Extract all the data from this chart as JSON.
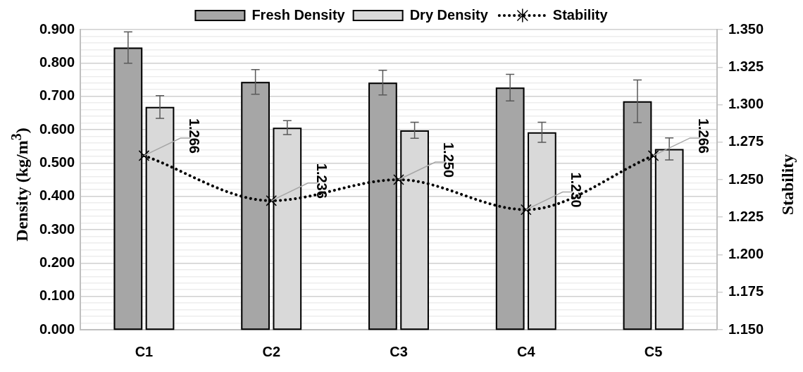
{
  "chart_data": {
    "type": "bar",
    "ylabel": "Density (kg/m$^{3}$)",
    "y2label": "Stability",
    "categories": [
      "C1",
      "C2",
      "C3",
      "C4",
      "C5"
    ],
    "series": [
      {
        "name": "Fresh Density",
        "color": "#a6a6a6",
        "values": [
          0.846,
          0.743,
          0.741,
          0.726,
          0.685
        ],
        "errors": [
          0.047,
          0.037,
          0.037,
          0.04,
          0.064
        ]
      },
      {
        "name": "Dry Density",
        "color": "#d9d9d9",
        "values": [
          0.668,
          0.606,
          0.598,
          0.592,
          0.542
        ],
        "errors": [
          0.034,
          0.021,
          0.024,
          0.03,
          0.033
        ]
      },
      {
        "name": "Stability",
        "type": "line",
        "axis": "y2",
        "color": "#000000",
        "marker": "cross",
        "line_style": "dotted",
        "values": [
          1.266,
          1.236,
          1.25,
          1.23,
          1.266
        ],
        "value_labels": [
          "1.266",
          "1.236",
          "1.250",
          "1.230",
          "1.266"
        ]
      }
    ],
    "ylim": [
      0,
      0.9
    ],
    "yticks": [
      {
        "value": 0,
        "label": "0.000"
      },
      {
        "value": 0.02,
        "label": null
      },
      {
        "value": 0.04,
        "label": null
      },
      {
        "value": 0.06,
        "label": null
      },
      {
        "value": 0.08,
        "label": null
      },
      {
        "value": 0.1,
        "label": "0.100"
      },
      {
        "value": 0.12,
        "label": null
      },
      {
        "value": 0.14,
        "label": null
      },
      {
        "value": 0.16,
        "label": null
      },
      {
        "value": 0.18,
        "label": null
      },
      {
        "value": 0.2,
        "label": "0.200"
      },
      {
        "value": 0.22,
        "label": null
      },
      {
        "value": 0.24,
        "label": null
      },
      {
        "value": 0.26,
        "label": null
      },
      {
        "value": 0.28,
        "label": null
      },
      {
        "value": 0.3,
        "label": "0.300"
      },
      {
        "value": 0.32,
        "label": null
      },
      {
        "value": 0.34,
        "label": null
      },
      {
        "value": 0.36,
        "label": null
      },
      {
        "value": 0.38,
        "label": null
      },
      {
        "value": 0.4,
        "label": "0.400"
      },
      {
        "value": 0.42,
        "label": null
      },
      {
        "value": 0.44,
        "label": null
      },
      {
        "value": 0.46,
        "label": null
      },
      {
        "value": 0.48,
        "label": null
      },
      {
        "value": 0.5,
        "label": "0.500"
      },
      {
        "value": 0.52,
        "label": null
      },
      {
        "value": 0.54,
        "label": null
      },
      {
        "value": 0.56,
        "label": null
      },
      {
        "value": 0.58,
        "label": null
      },
      {
        "value": 0.6,
        "label": "0.600"
      },
      {
        "value": 0.62,
        "label": null
      },
      {
        "value": 0.64,
        "label": null
      },
      {
        "value": 0.66,
        "label": null
      },
      {
        "value": 0.68,
        "label": null
      },
      {
        "value": 0.7,
        "label": "0.700"
      },
      {
        "value": 0.72,
        "label": null
      },
      {
        "value": 0.74,
        "label": null
      },
      {
        "value": 0.76,
        "label": null
      },
      {
        "value": 0.78,
        "label": null
      },
      {
        "value": 0.8,
        "label": "0.800"
      },
      {
        "value": 0.82,
        "label": null
      },
      {
        "value": 0.84,
        "label": null
      },
      {
        "value": 0.86,
        "label": null
      },
      {
        "value": 0.88,
        "label": null
      },
      {
        "value": 0.9,
        "label": "0.900"
      }
    ],
    "y2lim": [
      1.15,
      1.35
    ],
    "y2ticks": [
      {
        "value": 1.15,
        "label": "1.150"
      },
      {
        "value": 1.175,
        "label": "1.175"
      },
      {
        "value": 1.2,
        "label": "1.200"
      },
      {
        "value": 1.225,
        "label": "1.225"
      },
      {
        "value": 1.25,
        "label": "1.250"
      },
      {
        "value": 1.275,
        "label": "1.275"
      },
      {
        "value": 1.3,
        "label": "1.300"
      },
      {
        "value": 1.325,
        "label": "1.325"
      },
      {
        "value": 1.35,
        "label": "1.350"
      }
    ],
    "grid": "y",
    "legend": "top"
  }
}
